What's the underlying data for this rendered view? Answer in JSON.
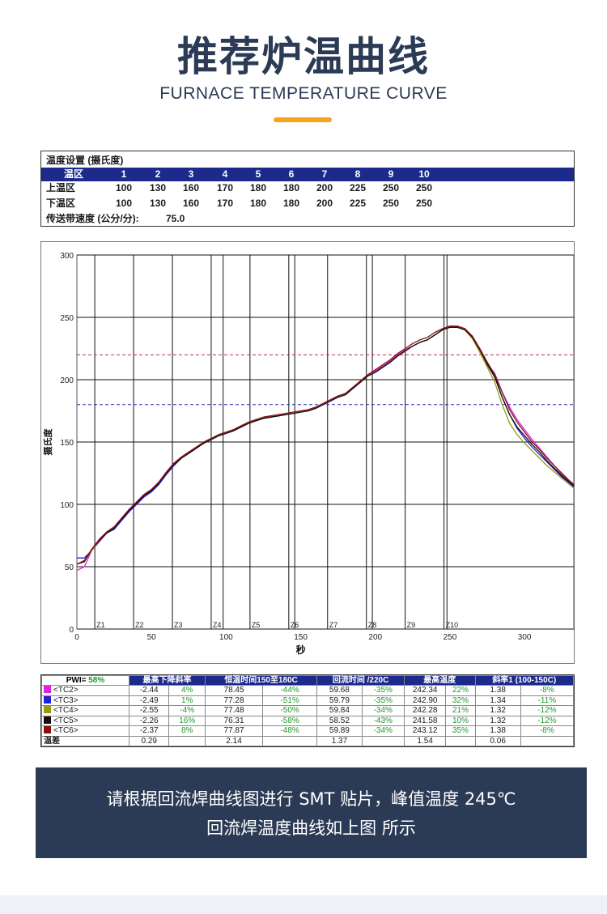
{
  "header": {
    "title": "推荐炉温曲线",
    "subtitle": "FURNACE TEMPERATURE CURVE",
    "accent_color": "#f4a31c",
    "title_color": "#2b3a55"
  },
  "settings": {
    "title": "温度设置 (摄氏度)",
    "zone_label": "温区",
    "zones": [
      "1",
      "2",
      "3",
      "4",
      "5",
      "6",
      "7",
      "8",
      "9",
      "10"
    ],
    "upper_label": "上温区",
    "upper": [
      "100",
      "130",
      "160",
      "170",
      "180",
      "180",
      "200",
      "225",
      "250",
      "250"
    ],
    "lower_label": "下温区",
    "lower": [
      "100",
      "130",
      "160",
      "170",
      "180",
      "180",
      "200",
      "225",
      "250",
      "250"
    ],
    "conveyor_label": "传送带速度 (公分/分):",
    "conveyor_value": "75.0"
  },
  "chart_data": {
    "type": "line",
    "title": "",
    "xlabel": "秒",
    "ylabel": "摄氏度",
    "xlim": [
      0,
      333
    ],
    "ylim": [
      0,
      300
    ],
    "x_ticks": [
      "0",
      "50",
      "100",
      "150",
      "200",
      "250",
      "300"
    ],
    "y_ticks": [
      "0",
      "50",
      "100",
      "150",
      "200",
      "250",
      "300"
    ],
    "zone_labels": [
      {
        "label": "Z1",
        "x": 12
      },
      {
        "label": "Z2",
        "x": 38
      },
      {
        "label": "Z3",
        "x": 64
      },
      {
        "label": "Z4",
        "x": 90
      },
      {
        "label": "Z5",
        "x": 116
      },
      {
        "label": "Z6",
        "x": 142
      },
      {
        "label": "Z7",
        "x": 168
      },
      {
        "label": "Z8",
        "x": 194
      },
      {
        "label": "Z9",
        "x": 220
      },
      {
        "label": "Z10",
        "x": 246
      }
    ],
    "zone_boundaries": [
      12,
      38,
      64,
      90,
      98,
      116,
      142,
      146,
      168,
      194,
      198,
      220,
      246,
      248
    ],
    "reference_lines": [
      {
        "y": 220,
        "color": "#c0284a",
        "style": "dashed"
      },
      {
        "y": 180,
        "color": "#2a2ab0",
        "style": "dashed"
      }
    ],
    "series": [
      {
        "name": "<TC2>",
        "color": "#e020e0",
        "x": [
          0,
          5,
          10,
          15,
          20,
          25,
          30,
          35,
          40,
          45,
          50,
          55,
          60,
          65,
          70,
          75,
          80,
          85,
          90,
          95,
          100,
          105,
          110,
          115,
          120,
          125,
          130,
          135,
          140,
          145,
          150,
          155,
          160,
          165,
          170,
          175,
          180,
          185,
          190,
          195,
          200,
          205,
          210,
          215,
          220,
          225,
          230,
          235,
          240,
          245,
          250,
          255,
          260,
          265,
          270,
          275,
          280,
          285,
          290,
          295,
          300,
          305,
          310,
          315,
          320,
          325,
          330,
          333
        ],
        "y": [
          47,
          50,
          63,
          70,
          77,
          81,
          88,
          95,
          101,
          107,
          112,
          118,
          126,
          133,
          138,
          142,
          145,
          149,
          152,
          155,
          157,
          159,
          162,
          165,
          167,
          169,
          170,
          171,
          172,
          173,
          174,
          175,
          177,
          180,
          183,
          186,
          188,
          193,
          198,
          203,
          207,
          211,
          215,
          220,
          224,
          227,
          230,
          232,
          236,
          240,
          242,
          242,
          240,
          234,
          224,
          213,
          205,
          190,
          178,
          168,
          160,
          152,
          145,
          138,
          131,
          124,
          118,
          115
        ]
      },
      {
        "name": "<TC3>",
        "color": "#2020e0",
        "x": [
          0,
          5,
          10,
          15,
          20,
          25,
          30,
          35,
          40,
          45,
          50,
          55,
          60,
          65,
          70,
          75,
          80,
          85,
          90,
          95,
          100,
          105,
          110,
          115,
          120,
          125,
          130,
          135,
          140,
          145,
          150,
          155,
          160,
          165,
          170,
          175,
          180,
          185,
          190,
          195,
          200,
          205,
          210,
          215,
          220,
          225,
          230,
          235,
          240,
          245,
          250,
          255,
          260,
          265,
          270,
          275,
          280,
          285,
          290,
          295,
          300,
          305,
          310,
          315,
          320,
          325,
          330,
          333
        ],
        "y": [
          57,
          57,
          63,
          71,
          77,
          80,
          87,
          94,
          100,
          106,
          110,
          116,
          124,
          131,
          137,
          141,
          145,
          149,
          152,
          155,
          157,
          159,
          162,
          165,
          167,
          169,
          170,
          171,
          172,
          173,
          174,
          175,
          177,
          180,
          183,
          186,
          188,
          193,
          198,
          203,
          206,
          210,
          214,
          219,
          223,
          227,
          230,
          232,
          236,
          240,
          242,
          242,
          240,
          234,
          224,
          213,
          203,
          186,
          172,
          161,
          153,
          146,
          140,
          134,
          128,
          122,
          117,
          114
        ]
      },
      {
        "name": "<TC4>",
        "color": "#9a9a10",
        "x": [
          0,
          5,
          10,
          15,
          20,
          25,
          30,
          35,
          40,
          45,
          50,
          55,
          60,
          65,
          70,
          75,
          80,
          85,
          90,
          95,
          100,
          105,
          110,
          115,
          120,
          125,
          130,
          135,
          140,
          145,
          150,
          155,
          160,
          165,
          170,
          175,
          180,
          185,
          190,
          195,
          200,
          205,
          210,
          215,
          220,
          225,
          230,
          235,
          240,
          245,
          250,
          255,
          260,
          265,
          270,
          275,
          280,
          285,
          290,
          295,
          300,
          305,
          310,
          315,
          320,
          325,
          330,
          333
        ],
        "y": [
          52,
          54,
          63,
          71,
          77,
          81,
          88,
          95,
          101,
          107,
          111,
          117,
          125,
          132,
          137,
          141,
          145,
          149,
          152,
          155,
          157,
          159,
          162,
          165,
          167,
          169,
          170,
          171,
          172,
          173,
          174,
          175,
          177,
          180,
          183,
          186,
          188,
          193,
          198,
          203,
          206,
          210,
          214,
          219,
          223,
          227,
          230,
          232,
          236,
          240,
          242,
          242,
          240,
          233,
          222,
          210,
          198,
          180,
          165,
          156,
          149,
          143,
          137,
          131,
          126,
          121,
          116,
          113
        ]
      },
      {
        "name": "<TC5>",
        "color": "#101010",
        "x": [
          0,
          5,
          10,
          15,
          20,
          25,
          30,
          35,
          40,
          45,
          50,
          55,
          60,
          65,
          70,
          75,
          80,
          85,
          90,
          95,
          100,
          105,
          110,
          115,
          120,
          125,
          130,
          135,
          140,
          145,
          150,
          155,
          160,
          165,
          170,
          175,
          180,
          185,
          190,
          195,
          200,
          205,
          210,
          215,
          220,
          225,
          230,
          235,
          240,
          245,
          250,
          255,
          260,
          265,
          270,
          275,
          280,
          285,
          290,
          295,
          300,
          305,
          310,
          315,
          320,
          325,
          330,
          333
        ],
        "y": [
          52,
          54,
          64,
          71,
          77,
          81,
          88,
          95,
          101,
          107,
          111,
          117,
          125,
          132,
          137,
          141,
          145,
          149,
          152,
          155,
          157,
          159,
          162,
          165,
          167,
          169,
          170,
          171,
          172,
          173,
          174,
          175,
          177,
          180,
          183,
          186,
          188,
          193,
          198,
          203,
          206,
          210,
          214,
          219,
          223,
          227,
          230,
          232,
          236,
          240,
          242,
          242,
          240,
          234,
          224,
          212,
          202,
          186,
          172,
          162,
          155,
          148,
          142,
          135,
          129,
          123,
          118,
          115
        ]
      },
      {
        "name": "<TC6>",
        "color": "#8a1010",
        "x": [
          0,
          5,
          10,
          15,
          20,
          25,
          30,
          35,
          40,
          45,
          50,
          55,
          60,
          65,
          70,
          75,
          80,
          85,
          90,
          95,
          100,
          105,
          110,
          115,
          120,
          125,
          130,
          135,
          140,
          145,
          150,
          155,
          160,
          165,
          170,
          175,
          180,
          185,
          190,
          195,
          200,
          205,
          210,
          215,
          220,
          225,
          230,
          235,
          240,
          245,
          250,
          255,
          260,
          265,
          270,
          275,
          280,
          285,
          290,
          295,
          300,
          305,
          310,
          315,
          320,
          325,
          330,
          333
        ],
        "y": [
          52,
          55,
          64,
          72,
          78,
          82,
          89,
          96,
          102,
          108,
          112,
          118,
          126,
          133,
          138,
          142,
          146,
          150,
          153,
          156,
          158,
          160,
          163,
          166,
          168,
          170,
          171,
          172,
          173,
          174,
          175,
          176,
          178,
          181,
          184,
          187,
          189,
          194,
          199,
          204,
          208,
          212,
          216,
          221,
          225,
          229,
          232,
          234,
          238,
          241,
          243,
          243,
          241,
          235,
          225,
          214,
          204,
          190,
          176,
          166,
          158,
          150,
          144,
          137,
          131,
          125,
          119,
          116
        ]
      }
    ]
  },
  "stats": {
    "pwi_label": "PWI=",
    "pwi_value": "58%",
    "headers": [
      "最高下降斜率",
      "恒温时间150至180C",
      "回流时间 /220C",
      "最高温度",
      "斜率1 (100-150C)"
    ],
    "rows": [
      {
        "name": "<TC2>",
        "color": "#e020e0",
        "cells": [
          "-2.44",
          "4%",
          "78.45",
          "-44%",
          "59.68",
          "-35%",
          "242.34",
          "22%",
          "1.38",
          "-8%"
        ]
      },
      {
        "name": "<TC3>",
        "color": "#2020e0",
        "cells": [
          "-2.49",
          "1%",
          "77.28",
          "-51%",
          "59.79",
          "-35%",
          "242.90",
          "32%",
          "1.34",
          "-11%"
        ]
      },
      {
        "name": "<TC4>",
        "color": "#9a9a10",
        "cells": [
          "-2.55",
          "-4%",
          "77.48",
          "-50%",
          "59.84",
          "-34%",
          "242.28",
          "21%",
          "1.32",
          "-12%"
        ]
      },
      {
        "name": "<TC5>",
        "color": "#101010",
        "cells": [
          "-2.26",
          "16%",
          "76.31",
          "-58%",
          "58.52",
          "-43%",
          "241.58",
          "10%",
          "1.32",
          "-12%"
        ]
      },
      {
        "name": "<TC6>",
        "color": "#8a1010",
        "cells": [
          "-2.37",
          "8%",
          "77.87",
          "-48%",
          "59.89",
          "-34%",
          "243.12",
          "35%",
          "1.38",
          "-8%"
        ]
      }
    ],
    "diff_label": "温差",
    "diff": [
      "0.29",
      "",
      "2.14",
      "",
      "1.37",
      "",
      "1.54",
      "",
      "0.06",
      ""
    ]
  },
  "caption": {
    "line1": "请根据回流焊曲线图进行 SMT 贴片，峰值温度 245℃",
    "line2": "回流焊温度曲线如上图 所示"
  }
}
